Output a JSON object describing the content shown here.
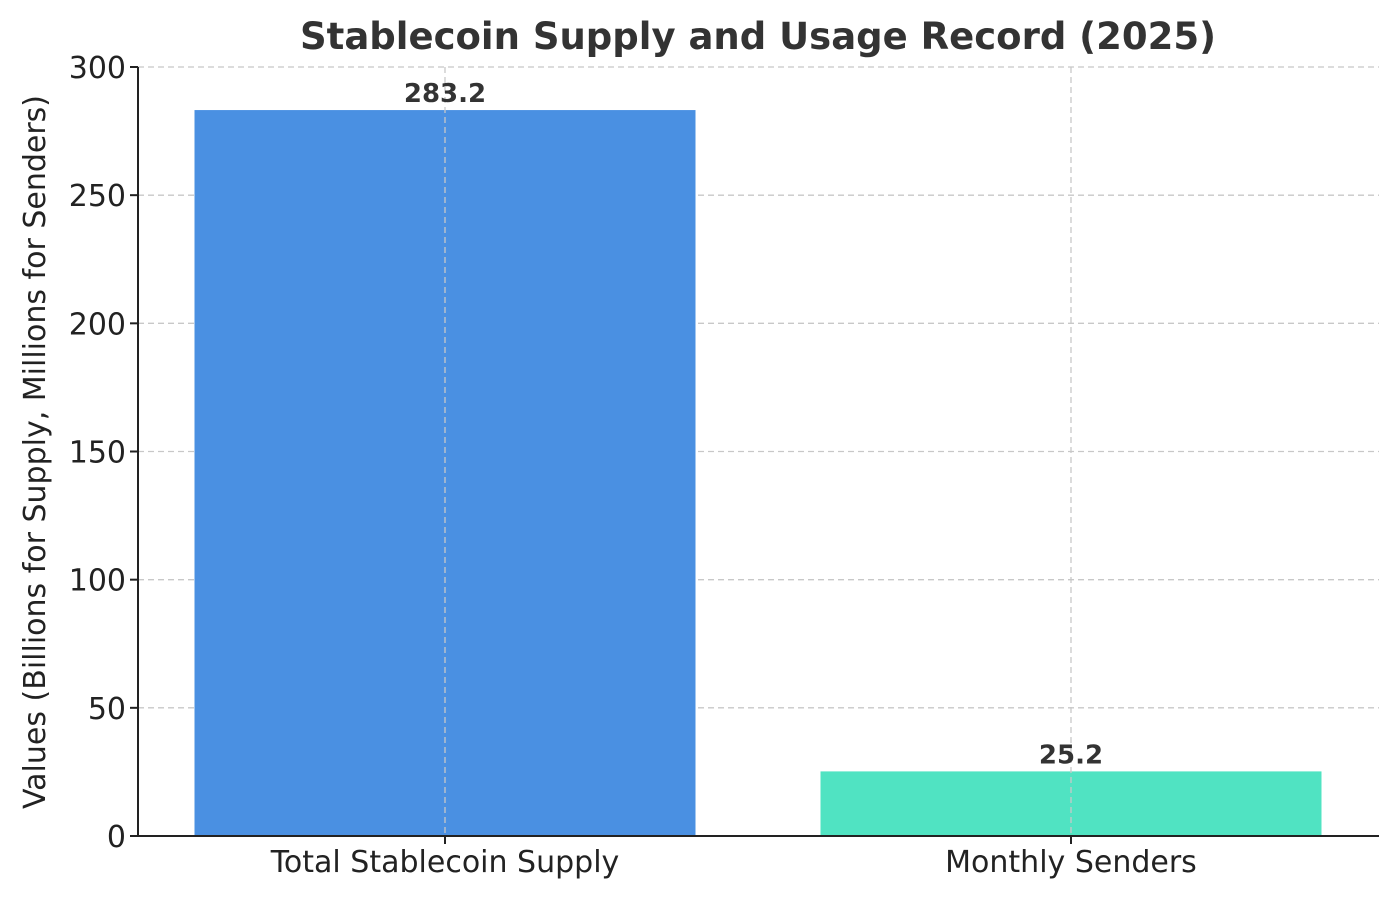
{
  "chart_data": {
    "type": "bar",
    "title": "Stablecoin Supply and Usage Record (2025)",
    "xlabel": "",
    "ylabel": "Values (Billions for Supply, Millions for Senders)",
    "categories": [
      "Total Stablecoin Supply",
      "Monthly Senders"
    ],
    "values": [
      283.2,
      25.2
    ],
    "data_labels": [
      "283.2",
      "25.2"
    ],
    "colors": [
      "#4a90e2",
      "#50e3c2"
    ],
    "ylim": [
      0,
      300
    ],
    "yticks": [
      0,
      50,
      100,
      150,
      200,
      250,
      300
    ],
    "grid": true
  }
}
